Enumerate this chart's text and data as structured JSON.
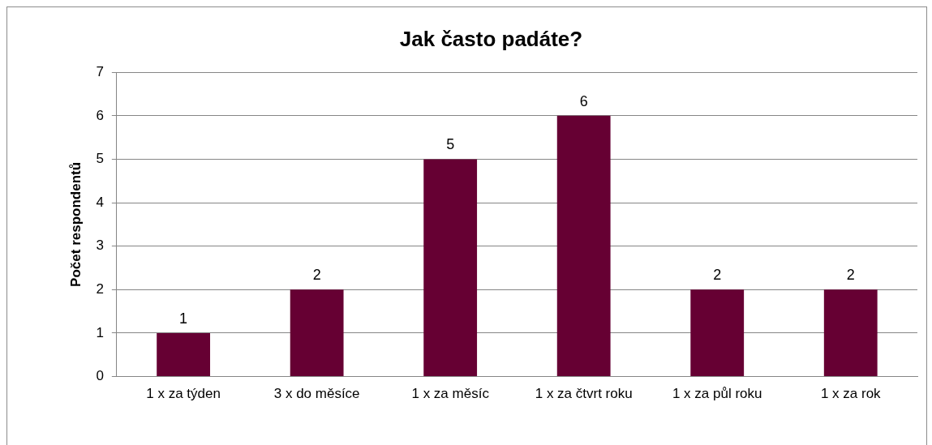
{
  "chart_data": {
    "type": "bar",
    "title": "Jak často padáte?",
    "ylabel": "Počet respondentů",
    "categories": [
      "1 x za týden",
      "3 x do měsíce",
      "1 x za měsíc",
      "1 x za čtvrt roku",
      "1 x za půl roku",
      "1 x za rok"
    ],
    "values": [
      1,
      2,
      5,
      6,
      2,
      2
    ],
    "color": "#660033",
    "ylim": [
      0,
      7
    ],
    "yticks": [
      0,
      1,
      2,
      3,
      4,
      5,
      6,
      7
    ],
    "grid": "y",
    "data_labels": true,
    "legend": false
  }
}
